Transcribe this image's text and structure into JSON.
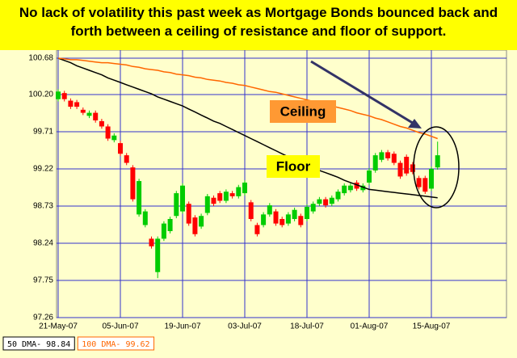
{
  "chart_data": {
    "type": "candlestick",
    "title": "No lack of volatility this past week as Mortgage Bonds bounced back and forth between a ceiling of resistance and floor of support.",
    "categories": [
      "21-May-07",
      null,
      null,
      null,
      null,
      null,
      null,
      null,
      null,
      null,
      "05-Jun-07",
      null,
      null,
      null,
      null,
      null,
      null,
      null,
      null,
      null,
      "19-Jun-07",
      null,
      null,
      null,
      null,
      null,
      null,
      null,
      null,
      null,
      "03-Jul-07",
      null,
      null,
      null,
      null,
      null,
      null,
      null,
      null,
      null,
      "18-Jul-07",
      null,
      null,
      null,
      null,
      null,
      null,
      null,
      null,
      null,
      "01-Aug-07",
      null,
      null,
      null,
      null,
      null,
      null,
      null,
      null,
      null,
      "15-Aug-07",
      null
    ],
    "open": [
      100.14,
      100.22,
      100.12,
      100.1,
      100.0,
      99.92,
      99.96,
      99.85,
      99.78,
      99.6,
      99.56,
      99.4,
      99.24,
      98.62,
      98.48,
      98.3,
      97.86,
      98.3,
      98.4,
      98.6,
      98.66,
      98.76,
      98.58,
      98.46,
      98.64,
      98.84,
      98.9,
      98.8,
      98.9,
      98.86,
      98.9,
      98.78,
      98.48,
      98.48,
      98.62,
      98.66,
      98.56,
      98.5,
      98.56,
      98.6,
      98.56,
      98.66,
      98.76,
      98.82,
      98.76,
      98.82,
      98.9,
      98.94,
      99.04,
      98.94,
      99.04,
      99.2,
      99.34,
      99.44,
      99.42,
      99.3,
      99.38,
      99.28,
      99.1,
      99.1,
      98.96,
      99.24
    ],
    "high": [
      100.27,
      100.25,
      100.15,
      100.13,
      100.03,
      99.99,
      99.99,
      99.88,
      99.81,
      99.69,
      99.59,
      99.43,
      99.27,
      99.09,
      98.69,
      98.33,
      98.33,
      98.53,
      98.59,
      98.93,
      99.03,
      98.79,
      98.61,
      98.63,
      98.89,
      98.87,
      98.93,
      98.95,
      98.93,
      99.01,
      99.07,
      98.81,
      98.51,
      98.65,
      98.77,
      98.69,
      98.59,
      98.65,
      98.71,
      98.63,
      98.75,
      98.79,
      98.85,
      98.85,
      98.87,
      98.95,
      99.03,
      99.03,
      99.07,
      99.03,
      99.23,
      99.43,
      99.47,
      99.47,
      99.45,
      99.33,
      99.41,
      99.31,
      99.13,
      99.13,
      99.25,
      99.58
    ],
    "low": [
      100.11,
      100.11,
      100.01,
      100.01,
      99.93,
      99.89,
      99.83,
      99.75,
      99.59,
      99.57,
      99.39,
      99.27,
      98.79,
      98.59,
      98.45,
      98.17,
      97.78,
      98.27,
      98.37,
      98.57,
      98.63,
      98.47,
      98.33,
      98.43,
      98.61,
      98.73,
      98.77,
      98.77,
      98.83,
      98.83,
      98.87,
      98.53,
      98.33,
      98.45,
      98.59,
      98.47,
      98.45,
      98.47,
      98.53,
      98.45,
      98.53,
      98.63,
      98.73,
      98.71,
      98.73,
      98.79,
      98.87,
      98.91,
      98.93,
      98.91,
      99.01,
      99.17,
      99.31,
      99.33,
      99.27,
      99.09,
      99.13,
      99.15,
      98.95,
      98.89,
      98.93,
      99.21
    ],
    "close": [
      100.24,
      100.14,
      100.04,
      100.04,
      99.96,
      99.96,
      99.86,
      99.78,
      99.62,
      99.66,
      99.42,
      99.3,
      98.82,
      99.06,
      98.66,
      98.2,
      98.3,
      98.5,
      98.56,
      98.9,
      99.0,
      98.5,
      98.36,
      98.6,
      98.86,
      98.76,
      98.8,
      98.92,
      98.86,
      98.98,
      99.04,
      98.56,
      98.36,
      98.62,
      98.74,
      98.5,
      98.48,
      98.62,
      98.68,
      98.48,
      98.72,
      98.76,
      98.82,
      98.74,
      98.84,
      98.92,
      99.0,
      99.0,
      98.96,
      99.0,
      99.2,
      99.4,
      99.44,
      99.36,
      99.3,
      99.12,
      99.16,
      99.18,
      98.98,
      98.92,
      99.22,
      99.4
    ],
    "up_color": "#00cc00",
    "down_color": "#ff0000",
    "series": [
      {
        "name": "50 DMA-",
        "color": "#000000",
        "values": [
          100.68,
          100.65,
          100.62,
          100.58,
          100.55,
          100.52,
          100.49,
          100.46,
          100.42,
          100.39,
          100.36,
          100.33,
          100.3,
          100.27,
          100.24,
          100.21,
          100.17,
          100.14,
          100.11,
          100.08,
          100.05,
          100.01,
          99.97,
          99.93,
          99.89,
          99.85,
          99.82,
          99.78,
          99.74,
          99.7,
          99.66,
          99.62,
          99.58,
          99.54,
          99.5,
          99.46,
          99.42,
          99.38,
          99.34,
          99.3,
          99.26,
          99.23,
          99.2,
          99.17,
          99.14,
          99.11,
          99.07,
          99.04,
          99.01,
          98.98,
          98.95,
          98.94,
          98.93,
          98.92,
          98.91,
          98.9,
          98.89,
          98.88,
          98.87,
          98.86,
          98.85,
          98.84
        ]
      },
      {
        "name": "100 DMA-",
        "color": "#ff6600",
        "values": [
          100.68,
          100.67,
          100.66,
          100.66,
          100.65,
          100.64,
          100.63,
          100.62,
          100.62,
          100.61,
          100.6,
          100.59,
          100.57,
          100.56,
          100.54,
          100.53,
          100.52,
          100.5,
          100.49,
          100.47,
          100.46,
          100.45,
          100.43,
          100.42,
          100.4,
          100.39,
          100.38,
          100.36,
          100.35,
          100.33,
          100.32,
          100.3,
          100.28,
          100.26,
          100.24,
          100.23,
          100.21,
          100.19,
          100.17,
          100.15,
          100.13,
          100.11,
          100.09,
          100.07,
          100.05,
          100.03,
          100.01,
          99.99,
          99.96,
          99.94,
          99.92,
          99.89,
          99.87,
          99.84,
          99.81,
          99.78,
          99.76,
          99.73,
          99.7,
          99.68,
          99.65,
          99.62
        ]
      }
    ],
    "ylim": [
      97.26,
      100.68
    ],
    "yticks": [
      100.68,
      {
        "value": 100.2,
        "label": "100.20"
      },
      99.71,
      99.22,
      98.73,
      98.24,
      97.75,
      97.26
    ],
    "grid": true,
    "annotations": [
      "Ceiling",
      "Floor"
    ]
  }
}
